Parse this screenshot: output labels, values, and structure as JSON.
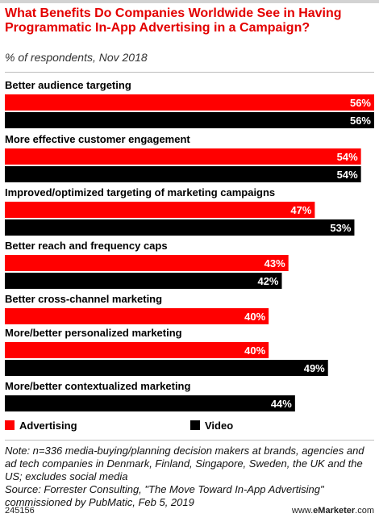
{
  "title": "What Benefits Do Companies Worldwide See in Having Programmatic In-App Advertising in a Campaign?",
  "subtitle": "% of respondents, Nov 2018",
  "note": "Note: n=336 media-buying/planning decision makers at brands, agencies and ad tech companies in Denmark, Finland, Singapore, Sweden, the UK and the US; excludes social media",
  "source": "Source: Forrester Consulting, \"The Move Toward In-App Advertising\" commissioned by PubMatic, Feb 5, 2019",
  "footer": {
    "id": "245156",
    "brand_prefix": "www.",
    "brand_name": "eMarketer",
    "brand_suffix": ".com"
  },
  "colors": {
    "advertising": "#ff0000",
    "video": "#000000",
    "title": "#e30000"
  },
  "chart_data": {
    "type": "bar",
    "orientation": "horizontal",
    "categories": [
      "Better audience targeting",
      "More effective customer engagement",
      "Improved/optimized targeting of marketing campaigns",
      "Better reach and frequency caps",
      "Better cross-channel marketing",
      "More/better personalized marketing",
      "More/better contextualized marketing"
    ],
    "series": [
      {
        "name": "Advertising",
        "values": [
          56,
          54,
          47,
          43,
          40,
          40,
          null
        ]
      },
      {
        "name": "Video",
        "values": [
          56,
          54,
          53,
          42,
          null,
          49,
          44
        ]
      }
    ],
    "value_suffix": "%",
    "xlim": [
      0,
      56
    ],
    "legend_position": "bottom-left"
  }
}
